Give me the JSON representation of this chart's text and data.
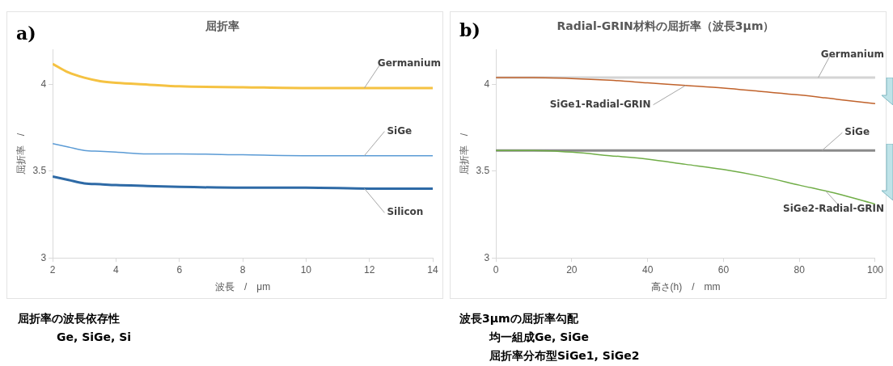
{
  "chart_data": [
    {
      "type": "line",
      "title": "屈折率",
      "xlabel": "波長　/　μm",
      "ylabel": "屈折率　/",
      "xlim": [
        2,
        14
      ],
      "xticks": [
        2,
        4,
        6,
        8,
        10,
        12,
        14
      ],
      "ylim": [
        3,
        4.2
      ],
      "yticks": [
        3,
        3.5,
        4
      ],
      "grid": false,
      "legend": false,
      "marker": "none",
      "line_style": "solid",
      "annotations": [
        "a)",
        "屈折率の波長依存性",
        "Ge, SiGe, Si"
      ],
      "series": [
        {
          "name": "Germanium",
          "color": "#f5c242",
          "x": [
            2,
            2.5,
            3,
            3.5,
            4,
            5,
            6,
            8,
            10,
            12,
            14
          ],
          "values": [
            4.12,
            4.07,
            4.04,
            4.02,
            4.01,
            4.0,
            3.99,
            3.985,
            3.98,
            3.98,
            3.98
          ]
        },
        {
          "name": "SiGe",
          "color": "#5b9bd5",
          "x": [
            2,
            2.5,
            3,
            3.5,
            4,
            5,
            6,
            8,
            10,
            12,
            14
          ],
          "values": [
            3.66,
            3.64,
            3.62,
            3.615,
            3.61,
            3.6,
            3.6,
            3.595,
            3.59,
            3.59,
            3.59
          ]
        },
        {
          "name": "Silicon",
          "color": "#2e6aa6",
          "x": [
            2,
            2.5,
            3,
            3.5,
            4,
            5,
            6,
            8,
            10,
            12,
            14
          ],
          "values": [
            3.47,
            3.45,
            3.43,
            3.425,
            3.42,
            3.415,
            3.41,
            3.405,
            3.405,
            3.4,
            3.4
          ]
        }
      ]
    },
    {
      "type": "line",
      "title": "Radial-GRIN材料の屈折率（波長3μm）",
      "xlabel": "高さ(h)　/　mm",
      "ylabel": "屈折率　/",
      "xlim": [
        0,
        100
      ],
      "xticks": [
        0,
        20,
        40,
        60,
        80,
        100
      ],
      "ylim": [
        3,
        4.2
      ],
      "yticks": [
        3,
        3.5,
        4
      ],
      "grid": false,
      "legend": false,
      "marker": "none",
      "line_style": "solid",
      "annotations": [
        "b)",
        "波長3μmの屈折率勾配",
        "均一組成Ge, SiGe",
        "屈折率分布型SiGe1, SiGe2"
      ],
      "series": [
        {
          "name": "Germanium",
          "color": "#d4d4d4",
          "x": [
            0,
            100
          ],
          "values": [
            4.04,
            4.04
          ]
        },
        {
          "name": "SiGe1-Radial-GRIN",
          "color": "#c0622b",
          "x": [
            0,
            10,
            20,
            30,
            40,
            50,
            60,
            70,
            80,
            90,
            100
          ],
          "values": [
            4.04,
            4.04,
            4.035,
            4.025,
            4.01,
            3.995,
            3.98,
            3.96,
            3.94,
            3.915,
            3.89
          ]
        },
        {
          "name": "SiGe",
          "color": "#8a8a8a",
          "x": [
            0,
            100
          ],
          "values": [
            3.62,
            3.62
          ]
        },
        {
          "name": "SiGe2-Radial-GRIN",
          "color": "#70ad47",
          "x": [
            0,
            10,
            20,
            30,
            40,
            50,
            60,
            70,
            80,
            90,
            100
          ],
          "values": [
            3.62,
            3.62,
            3.61,
            3.59,
            3.57,
            3.54,
            3.51,
            3.47,
            3.42,
            3.37,
            3.31
          ]
        }
      ]
    }
  ]
}
